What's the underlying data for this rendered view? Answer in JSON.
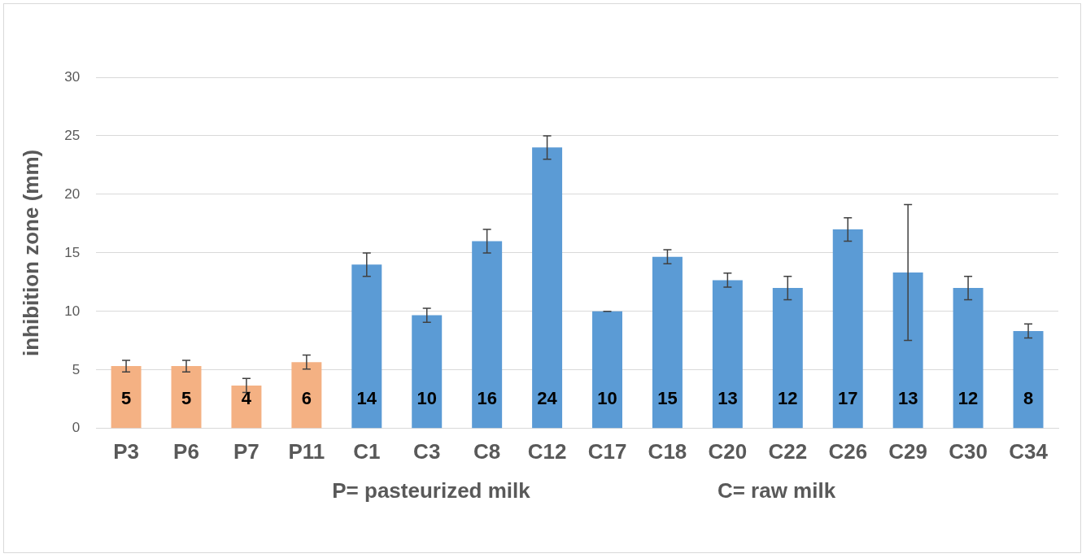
{
  "chart_data": {
    "type": "bar",
    "categories": [
      "P3",
      "P6",
      "P7",
      "P11",
      "C1",
      "C3",
      "C8",
      "C12",
      "C17",
      "C18",
      "C20",
      "C22",
      "C26",
      "C29",
      "C30",
      "C34"
    ],
    "values": [
      5.33,
      5.33,
      3.67,
      5.67,
      14,
      9.67,
      16,
      24,
      10,
      14.67,
      12.67,
      12,
      17,
      13.33,
      12,
      8.33
    ],
    "errors": [
      0.5,
      0.5,
      0.6,
      0.6,
      1,
      0.6,
      1,
      1,
      0,
      0.6,
      0.6,
      1,
      1,
      5.8,
      1,
      0.6
    ],
    "value_labels": [
      "5",
      "5",
      "4",
      "6",
      "14",
      "10",
      "16",
      "24",
      "10",
      "15",
      "13",
      "12",
      "17",
      "13",
      "12",
      "8"
    ],
    "colors": [
      "#f4b183",
      "#f4b183",
      "#f4b183",
      "#f4b183",
      "#5b9bd5",
      "#5b9bd5",
      "#5b9bd5",
      "#5b9bd5",
      "#5b9bd5",
      "#5b9bd5",
      "#5b9bd5",
      "#5b9bd5",
      "#5b9bd5",
      "#5b9bd5",
      "#5b9bd5",
      "#5b9bd5"
    ],
    "ylabel": "inhibition zone (mm)",
    "xlabel": "P= pasteurized milk",
    "annotations": [
      "C= raw milk"
    ],
    "ylim": [
      0,
      30
    ],
    "yticks": [
      0,
      5,
      10,
      15,
      20,
      25,
      30
    ],
    "grid": "y",
    "legend": false
  }
}
